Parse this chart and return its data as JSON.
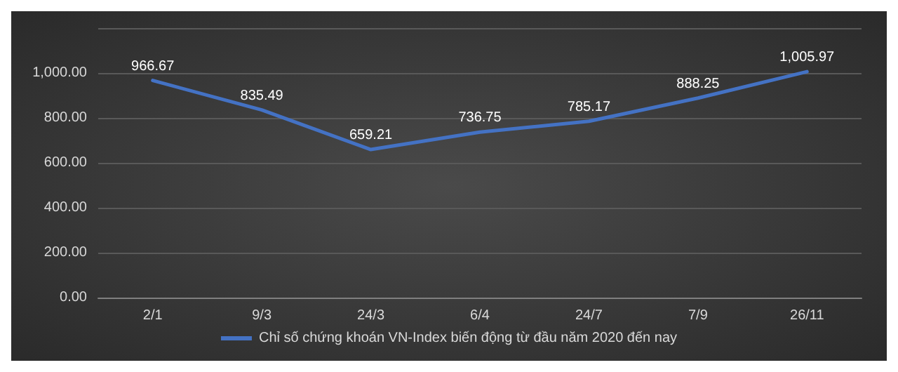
{
  "chart_data": {
    "type": "line",
    "categories": [
      "2/1",
      "9/3",
      "24/3",
      "6/4",
      "24/7",
      "7/9",
      "26/11"
    ],
    "series": [
      {
        "name": "Chỉ số chứng khoán VN-Index biến động từ đầu năm 2020 đến nay",
        "color": "#4472c4",
        "values": [
          966.67,
          835.49,
          659.21,
          736.75,
          785.17,
          888.25,
          1005.97
        ],
        "value_labels": [
          "966.67",
          "835.49",
          "659.21",
          "736.75",
          "785.17",
          "888.25",
          "1,005.97"
        ]
      }
    ],
    "yticks": [
      {
        "value": 0,
        "label": "0.00"
      },
      {
        "value": 200,
        "label": "200.00"
      },
      {
        "value": 400,
        "label": "400.00"
      },
      {
        "value": 600,
        "label": "600.00"
      },
      {
        "value": 800,
        "label": "800.00"
      },
      {
        "value": 1000,
        "label": "1,000.00"
      },
      {
        "value": 1200,
        "label": null
      }
    ],
    "ylim": [
      0,
      1200
    ],
    "grid": "y",
    "legend": "bottom",
    "marker": "none",
    "line_style": "solid"
  }
}
